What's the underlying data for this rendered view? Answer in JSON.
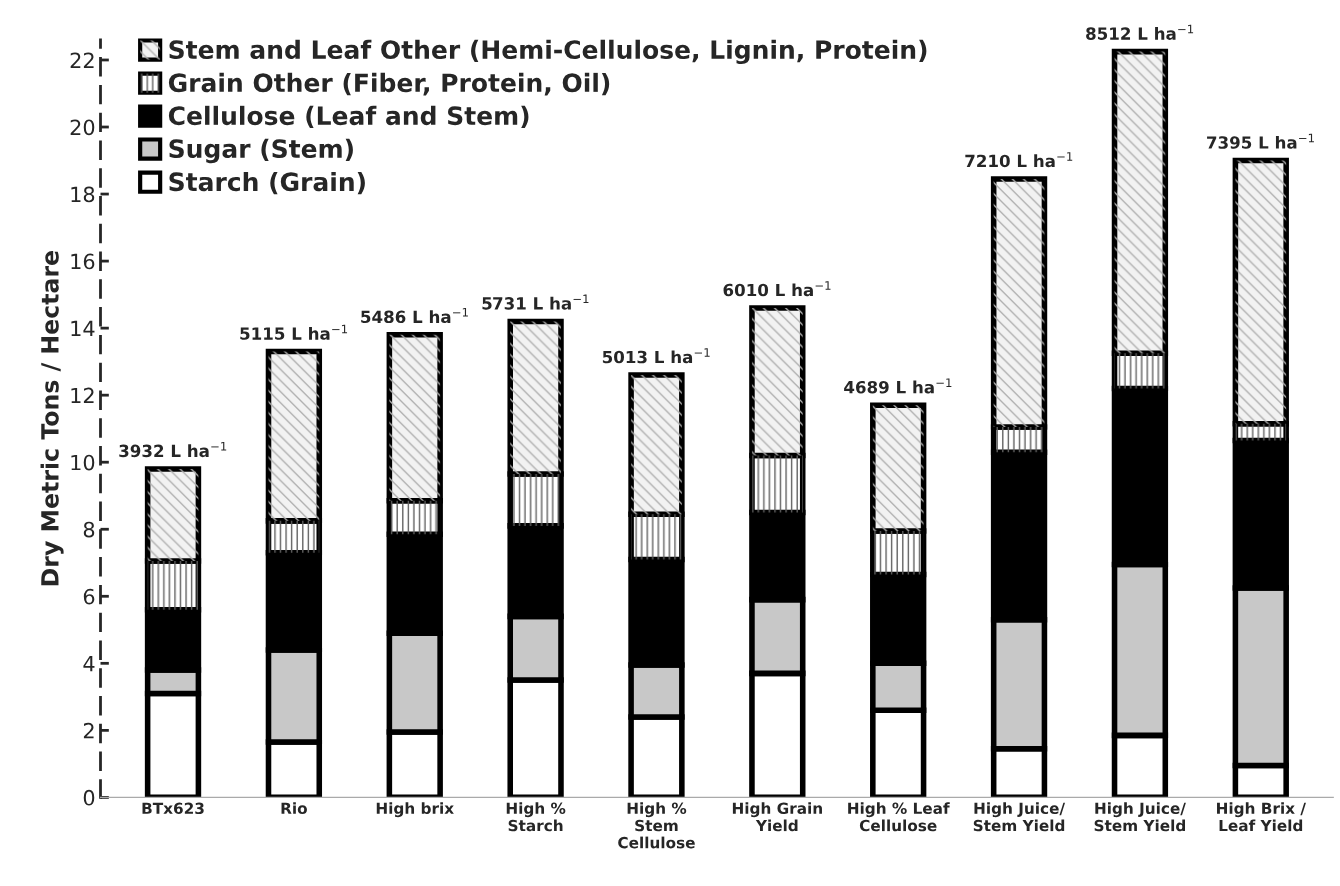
{
  "chart_data": {
    "type": "bar",
    "stacked": true,
    "ylabel": "Dry Metric Tons / Hectare",
    "categories": [
      "BTx623",
      "Rio",
      "High brix",
      "High %\nStarch",
      "High %\nStem\nCellulose",
      "High Grain\nYield",
      "High % Leaf\nCellulose",
      "High Juice/\nStem Yield",
      "High Juice/\nStem Yield",
      "High Brix /\nLeaf Yield"
    ],
    "series": [
      {
        "name": "Starch (Grain)",
        "color": "#ffffff",
        "values": [
          3.1,
          1.65,
          1.95,
          3.5,
          2.4,
          3.7,
          2.6,
          1.45,
          1.85,
          0.95
        ]
      },
      {
        "name": "Sugar (Stem)",
        "color": "#c8c8c8",
        "values": [
          0.7,
          2.75,
          2.95,
          1.9,
          1.55,
          2.2,
          1.4,
          3.85,
          5.1,
          5.3
        ]
      },
      {
        "name": "Cellulose (Leaf and Stem)",
        "color": "#000000",
        "values": [
          1.8,
          2.9,
          2.95,
          2.7,
          3.15,
          2.6,
          2.65,
          5.0,
          5.25,
          4.4
        ]
      },
      {
        "name": "Grain Other (Fiber, Protein, Oil)",
        "color": "#ffffff",
        "values": [
          1.45,
          0.95,
          1.0,
          1.55,
          1.35,
          1.7,
          1.3,
          0.75,
          1.05,
          0.5
        ]
      },
      {
        "name": "Stem and Leaf Other (Hemi-Cellulose, Lignin, Protein)",
        "color": "#f2f2f2",
        "values": [
          2.75,
          5.05,
          4.95,
          4.55,
          4.15,
          4.4,
          3.75,
          7.4,
          9.0,
          7.85
        ]
      }
    ],
    "totals": [
      "3932 L ha$^{−1}$",
      "5115 L ha$^{−1}$",
      "5486 L ha$^{−1}$",
      "5731 L ha$^{−1}$",
      "5013 L ha$^{−1}$",
      "6010 L ha$^{−1}$",
      "4689 L ha$^{−1}$",
      "7210 L ha$^{−1}$",
      "8512 L ha$^{−1}$",
      "7395 L ha$^{−1}$"
    ],
    "ylim": [
      0,
      22.6
    ],
    "yticks": [
      0,
      2,
      4,
      6,
      8,
      10,
      12,
      14,
      16,
      18,
      20,
      22
    ],
    "grid": false,
    "legend": "top left"
  }
}
